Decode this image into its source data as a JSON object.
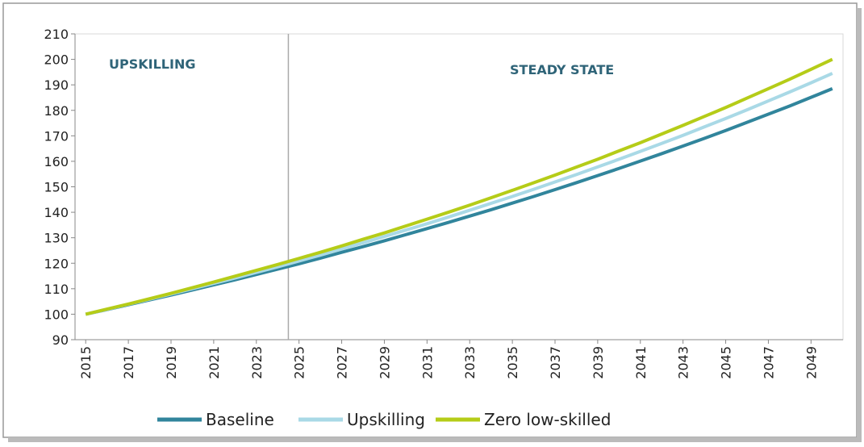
{
  "chart_data": {
    "type": "line",
    "annotations": [
      "UPSKILLING",
      "STEADY STATE"
    ],
    "divider": 2024.5,
    "x": [
      2015,
      2016,
      2017,
      2018,
      2019,
      2020,
      2021,
      2022,
      2023,
      2024,
      2025,
      2026,
      2027,
      2028,
      2029,
      2030,
      2031,
      2032,
      2033,
      2034,
      2035,
      2036,
      2037,
      2038,
      2039,
      2040,
      2041,
      2042,
      2043,
      2044,
      2045,
      2046,
      2047,
      2048,
      2049,
      2050
    ],
    "xlim": [
      2014.5,
      2050.5
    ],
    "xticks": [
      2015,
      2017,
      2019,
      2021,
      2023,
      2025,
      2027,
      2029,
      2031,
      2033,
      2035,
      2037,
      2039,
      2041,
      2043,
      2045,
      2047,
      2049
    ],
    "ylim": [
      90,
      210
    ],
    "yticks": [
      90,
      100,
      110,
      120,
      130,
      140,
      150,
      160,
      170,
      180,
      190,
      200,
      210
    ],
    "legend": "bottom",
    "series": [
      {
        "name": "Baseline",
        "color": "#31859c",
        "values": [
          100,
          101.8,
          103.7,
          105.6,
          107.5,
          109.5,
          111.5,
          113.5,
          115.6,
          117.7,
          119.8,
          122.0,
          124.3,
          126.5,
          128.8,
          131.2,
          133.6,
          136.0,
          138.5,
          141.0,
          143.6,
          146.2,
          148.9,
          151.6,
          154.4,
          157.2,
          160.1,
          163.0,
          166.0,
          169.0,
          172.1,
          175.3,
          178.5,
          181.7,
          185.1,
          188.5
        ]
      },
      {
        "name": "Upskilling",
        "color": "#a9d9e6",
        "values": [
          100,
          101.9,
          103.9,
          105.9,
          107.9,
          110.0,
          112.1,
          114.2,
          116.4,
          118.6,
          120.9,
          123.2,
          125.6,
          128.0,
          130.5,
          133.0,
          135.5,
          138.1,
          140.8,
          143.5,
          146.2,
          149.0,
          151.9,
          154.8,
          157.8,
          160.8,
          163.9,
          167.0,
          170.2,
          173.5,
          176.8,
          180.2,
          183.7,
          187.2,
          190.8,
          194.5
        ]
      },
      {
        "name": "Zero low-skilled",
        "color": "#b5cc18",
        "values": [
          100,
          102,
          104,
          106.1,
          108.2,
          110.4,
          112.6,
          114.9,
          117.2,
          119.5,
          121.9,
          124.3,
          126.8,
          129.4,
          131.9,
          134.6,
          137.3,
          140.0,
          142.8,
          145.7,
          148.6,
          151.6,
          154.6,
          157.7,
          160.8,
          164.1,
          167.3,
          170.7,
          174.1,
          177.6,
          181.1,
          184.8,
          188.5,
          192.2,
          196.1,
          200.0
        ]
      }
    ]
  }
}
